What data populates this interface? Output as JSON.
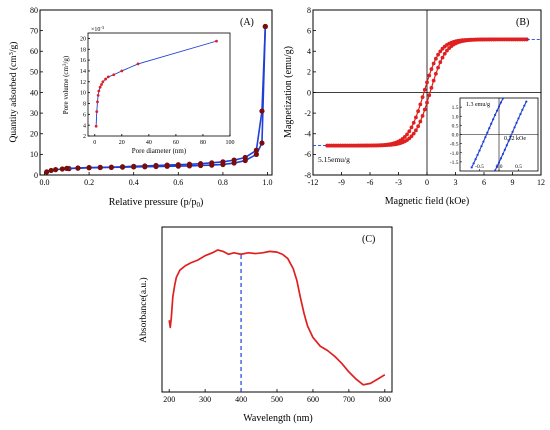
{
  "chart_data": [
    {
      "id": "A",
      "panel_label": "(A)",
      "type": "line",
      "xlabel": "Relative pressure (p/p",
      "xlabel_sub": "0",
      "xlabel_end": ")",
      "ylabel": "Quantity adsorbed (cm",
      "ylabel_sup": "3",
      "ylabel_end": "/g)",
      "xlim": [
        -0.02,
        1.02
      ],
      "ylim": [
        0,
        80
      ],
      "xticks": [
        "0.0",
        "0.2",
        "0.4",
        "0.6",
        "0.8",
        "1.0"
      ],
      "xtick_values": [
        0.0,
        0.2,
        0.4,
        0.6,
        0.8,
        1.0
      ],
      "yticks": [
        "0",
        "10",
        "20",
        "30",
        "40",
        "50",
        "60",
        "70",
        "80"
      ],
      "ytick_values": [
        0,
        10,
        20,
        30,
        40,
        50,
        60,
        70,
        80
      ],
      "series": [
        {
          "color": "#1f3fd6",
          "marker_color": "#7a0c0c",
          "x": [
            0.01,
            0.03,
            0.05,
            0.08,
            0.11,
            0.15,
            0.2,
            0.25,
            0.3,
            0.35,
            0.4,
            0.45,
            0.5,
            0.55,
            0.6,
            0.65,
            0.7,
            0.75,
            0.8,
            0.85,
            0.9,
            0.95,
            0.975,
            0.99
          ],
          "y": [
            1.5,
            2.2,
            2.6,
            2.9,
            3.1,
            3.3,
            3.5,
            3.6,
            3.7,
            3.8,
            3.9,
            4.0,
            4.1,
            4.2,
            4.3,
            4.4,
            4.6,
            4.8,
            5.1,
            5.8,
            7.0,
            10.0,
            15.5,
            72.0
          ]
        },
        {
          "color": "#1f3fd6",
          "marker_color": "#7a0c0c",
          "x": [
            0.99,
            0.975,
            0.95,
            0.9,
            0.85,
            0.8,
            0.75,
            0.7,
            0.65,
            0.6,
            0.55,
            0.5,
            0.45,
            0.4,
            0.35,
            0.3,
            0.25,
            0.2,
            0.15,
            0.1
          ],
          "y": [
            72.0,
            31.0,
            12.0,
            8.5,
            7.2,
            6.4,
            5.9,
            5.5,
            5.2,
            5.0,
            4.8,
            4.6,
            4.4,
            4.2,
            4.0,
            3.8,
            3.7,
            3.6,
            3.4,
            3.2
          ]
        }
      ],
      "inset": {
        "type": "line",
        "xlabel": "Pore diameter (nm)",
        "ylabel": "Pore volume (cm",
        "ylabel_sup": "3",
        "ylabel_end": "/g)",
        "multiplier": "×10",
        "multiplier_exp": "-3",
        "xlim": [
          -5,
          100
        ],
        "ylim": [
          2,
          21
        ],
        "xticks": [
          "0",
          "20",
          "40",
          "60",
          "80",
          "100"
        ],
        "xtick_values": [
          0,
          20,
          40,
          60,
          80,
          100
        ],
        "yticks": [
          "2",
          "4",
          "6",
          "8",
          "10",
          "12",
          "14",
          "16",
          "18",
          "20"
        ],
        "ytick_values": [
          2,
          4,
          6,
          8,
          10,
          12,
          14,
          16,
          18,
          20
        ],
        "series": [
          {
            "color": "#1f3fd6",
            "marker_color": "#e02020",
            "x": [
              1.0,
              1.5,
              2.0,
              2.5,
              3.0,
              4.0,
              5.0,
              6.0,
              8.0,
              10.0,
              14.0,
              20.0,
              32.0,
              90.0
            ],
            "y": [
              3.8,
              6.5,
              8.3,
              9.5,
              10.3,
              11.0,
              11.5,
              12.0,
              12.5,
              12.9,
              13.3,
              14.0,
              15.3,
              19.5
            ]
          }
        ]
      }
    },
    {
      "id": "B",
      "panel_label": "(B)",
      "type": "line",
      "xlabel": "Magnetic field (kOe)",
      "ylabel": "Magnetization (emu/g)",
      "xlim": [
        -12,
        12
      ],
      "ylim": [
        -8,
        8
      ],
      "xticks": [
        "-12",
        "-9",
        "-6",
        "-3",
        "0",
        "3",
        "6",
        "9",
        "12"
      ],
      "xtick_values": [
        -12,
        -9,
        -6,
        -3,
        0,
        3,
        6,
        9,
        12
      ],
      "yticks": [
        "-8",
        "-6",
        "-4",
        "-2",
        "0",
        "2",
        "4",
        "6",
        "8"
      ],
      "ytick_values": [
        -8,
        -6,
        -4,
        -2,
        0,
        2,
        4,
        6,
        8
      ],
      "series": [
        {
          "color": "#e02020",
          "Ms": 5.15,
          "Hc": 0.32,
          "Mr": 1.3,
          "k": 0.6,
          "xmin": -10.5,
          "xmax": 10.5
        }
      ],
      "annotations": [
        "5.15emu/g"
      ],
      "inset": {
        "xlim": [
          -1.0,
          1.0
        ],
        "ylim": [
          -2.0,
          2.0
        ],
        "xticks": [
          "-0.5",
          "0.0",
          "0.5"
        ],
        "xtick_values": [
          -0.5,
          0.0,
          0.5
        ],
        "yticks": [
          "1.5",
          "1.0",
          "0.5",
          "0.0",
          "-0.5",
          "-1.0",
          "-1.5"
        ],
        "ytick_values": [
          1.5,
          1.0,
          0.5,
          0.0,
          -0.5,
          -1.0,
          -1.5
        ],
        "annotations": [
          "1.3 emu/g",
          "0.32 kOe"
        ],
        "color": "#1f3fd6"
      }
    },
    {
      "id": "C",
      "panel_label": "(C)",
      "type": "line",
      "xlabel": "Wavelength (nm)",
      "ylabel": "Absorbance(a.u.)",
      "xlim": [
        180,
        820
      ],
      "ylim": [
        0,
        1.15
      ],
      "xticks": [
        "200",
        "300",
        "400",
        "500",
        "600",
        "700",
        "800"
      ],
      "xtick_values": [
        200,
        300,
        400,
        500,
        600,
        700,
        800
      ],
      "marker_line_x": 400,
      "series": [
        {
          "color": "#e02020",
          "x": [
            200,
            203,
            206,
            210,
            215,
            220,
            230,
            245,
            260,
            280,
            300,
            320,
            335,
            350,
            365,
            380,
            400,
            420,
            440,
            460,
            480,
            500,
            515,
            530,
            545,
            555,
            565,
            575,
            585,
            600,
            620,
            640,
            660,
            680,
            700,
            720,
            740,
            760,
            780,
            800
          ],
          "y": [
            0.5,
            0.45,
            0.52,
            0.66,
            0.74,
            0.8,
            0.85,
            0.88,
            0.9,
            0.92,
            0.95,
            0.97,
            0.99,
            0.98,
            0.96,
            0.97,
            0.96,
            0.97,
            0.965,
            0.97,
            0.98,
            0.975,
            0.96,
            0.93,
            0.86,
            0.78,
            0.66,
            0.55,
            0.46,
            0.38,
            0.32,
            0.29,
            0.25,
            0.2,
            0.14,
            0.09,
            0.05,
            0.06,
            0.09,
            0.12
          ]
        }
      ]
    }
  ]
}
